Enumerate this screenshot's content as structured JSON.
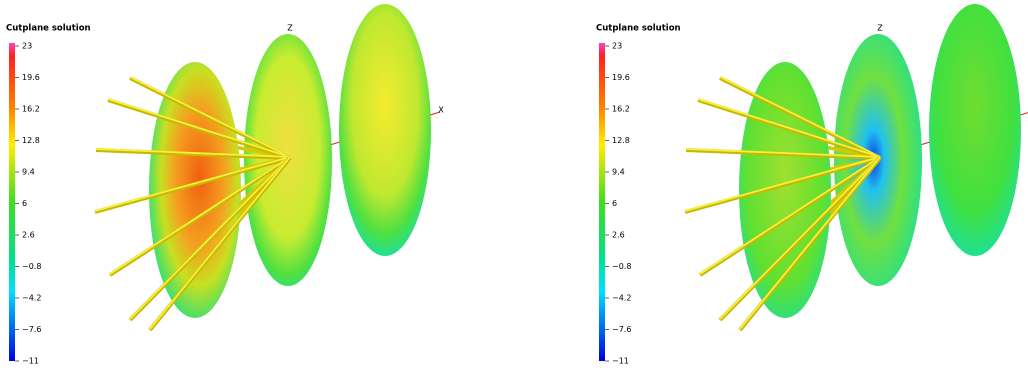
{
  "panels": [
    {
      "title": "Cutplane solution",
      "colorbar_labels": [
        "23",
        "19.6",
        "16.2",
        "12.8",
        "9.4",
        "6",
        "2.6",
        "−0.8",
        "−4.2",
        "−7.6",
        "−11"
      ],
      "axis_labels": [
        "Z",
        "X"
      ]
    },
    {
      "title": "Cutplane solution",
      "colorbar_labels": [
        "23",
        "19.6",
        "16.2",
        "12.8",
        "9.4",
        "6",
        "2.6",
        "−0.8",
        "−4.2",
        "−7.6",
        "−11"
      ],
      "axis_labels": [
        "Z"
      ]
    }
  ]
}
